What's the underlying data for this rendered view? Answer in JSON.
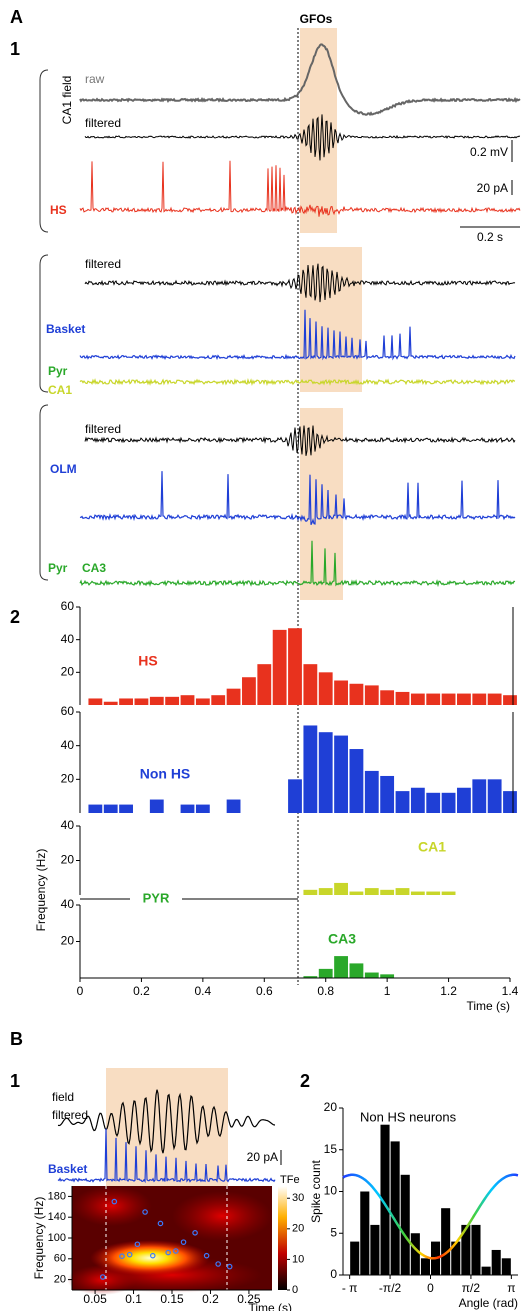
{
  "figure": {
    "panel_a": "A",
    "a1": "1",
    "a2": "2",
    "panel_b": "B",
    "b1": "1",
    "b2": "2"
  },
  "traces_a": {
    "gfo": "GFOs",
    "raw": "raw",
    "ca1_field": "CA1 field",
    "filtered_1": "filtered",
    "scale_mv": "0.2 mV",
    "scale_pa": "20 pA",
    "scale_s": "0.2 s",
    "hs": "HS",
    "filtered_2": "filtered",
    "basket": "Basket",
    "pyr_1": "Pyr",
    "ca1": "CA1",
    "filtered_3": "filtered",
    "olm": "OLM",
    "pyr_2": "Pyr",
    "ca3": "CA3"
  },
  "traces_b": {
    "field": "field",
    "filtered": "filtered",
    "basket": "Basket",
    "scale_pa": "20 pA"
  },
  "chart_data": [
    {
      "type": "bar",
      "label": "HS",
      "color": "#e8321e",
      "xlim": [
        0,
        1.4
      ],
      "ylim": [
        0,
        60
      ],
      "yticks": [
        20,
        40,
        60
      ],
      "x": [
        0.05,
        0.1,
        0.15,
        0.2,
        0.25,
        0.3,
        0.35,
        0.4,
        0.45,
        0.5,
        0.55,
        0.6,
        0.65,
        0.7,
        0.75,
        0.8,
        0.85,
        0.9,
        0.95,
        1.0,
        1.05,
        1.1,
        1.15,
        1.2,
        1.25,
        1.3,
        1.35,
        1.4
      ],
      "values": [
        4,
        2,
        4,
        4,
        5,
        5,
        6,
        4,
        6,
        10,
        17,
        25,
        46,
        47,
        25,
        20,
        15,
        13,
        12,
        9,
        8,
        7,
        7,
        7,
        7,
        7,
        7,
        6
      ]
    },
    {
      "type": "bar",
      "label": "Non HS",
      "color": "#1f3fd6",
      "xlim": [
        0,
        1.4
      ],
      "ylim": [
        0,
        60
      ],
      "yticks": [
        20,
        40,
        60
      ],
      "x": [
        0.05,
        0.1,
        0.15,
        0.2,
        0.25,
        0.3,
        0.35,
        0.4,
        0.45,
        0.5,
        0.55,
        0.6,
        0.65,
        0.7,
        0.75,
        0.8,
        0.85,
        0.9,
        0.95,
        1.0,
        1.05,
        1.1,
        1.15,
        1.2,
        1.25,
        1.3,
        1.35,
        1.4
      ],
      "values": [
        5,
        5,
        5,
        0,
        8,
        0,
        5,
        5,
        0,
        8,
        0,
        0,
        0,
        20,
        52,
        48,
        46,
        38,
        25,
        22,
        13,
        15,
        12,
        12,
        15,
        20,
        20,
        13
      ]
    },
    {
      "type": "bar",
      "label": "CA1",
      "group_label": "PYR",
      "color": "#c8d62a",
      "xlim": [
        0,
        1.4
      ],
      "ylim": [
        0,
        40
      ],
      "yticks": [
        20,
        40
      ],
      "x": [
        0.75,
        0.8,
        0.85,
        0.9,
        0.95,
        1.0,
        1.05,
        1.1,
        1.15,
        1.2
      ],
      "values": [
        3,
        4,
        7,
        2,
        4,
        3,
        4,
        2,
        2,
        2
      ]
    },
    {
      "type": "bar",
      "label": "CA3",
      "color": "#2aa82a",
      "xlim": [
        0,
        1.4
      ],
      "ylim": [
        0,
        40
      ],
      "yticks": [
        20,
        40
      ],
      "y_label": "Frequency (Hz)",
      "x_label": "Time (s)",
      "xticks": [
        0,
        0.2,
        0.4,
        0.6,
        0.8,
        1,
        1.2,
        1.4
      ],
      "x": [
        0.75,
        0.8,
        0.85,
        0.9,
        0.95,
        1.0
      ],
      "values": [
        1,
        5,
        12,
        8,
        3,
        2
      ]
    },
    {
      "type": "heatmap",
      "y_label": "Frequency (Hz)",
      "x_label": "Time (s)",
      "xlim": [
        0.02,
        0.28
      ],
      "xticks": [
        0.05,
        0.1,
        0.15,
        0.2,
        0.25
      ],
      "ylim": [
        0,
        200
      ],
      "yticks": [
        20,
        60,
        100,
        140,
        180
      ],
      "colorbar": {
        "label": "TFe",
        "lim": [
          0,
          34
        ],
        "ticks": [
          0,
          10,
          20,
          30
        ]
      },
      "points": {
        "color": "#3a7bff",
        "x": [
          0.06,
          0.075,
          0.085,
          0.095,
          0.105,
          0.115,
          0.125,
          0.135,
          0.145,
          0.155,
          0.165,
          0.18,
          0.195,
          0.21,
          0.225
        ],
        "y": [
          25,
          170,
          65,
          68,
          88,
          150,
          66,
          128,
          72,
          75,
          92,
          110,
          66,
          50,
          45
        ]
      }
    },
    {
      "type": "bar",
      "title": "Non HS neurons",
      "y_label": "Spike count",
      "x_label": "Angle (rad)",
      "color": "#000000",
      "xlim": [
        -3.4,
        3.4
      ],
      "xticks": [
        {
          "value": -3.1416,
          "label": "- π"
        },
        {
          "value": -1.5708,
          "label": "-π/2"
        },
        0,
        {
          "value": 1.5708,
          "label": "π/2"
        },
        {
          "value": 3.1416,
          "label": "π"
        }
      ],
      "ylim": [
        0,
        20
      ],
      "yticks": [
        0,
        5,
        10,
        15,
        20
      ],
      "x": [
        -2.945,
        -2.553,
        -2.16,
        -1.767,
        -1.374,
        -0.982,
        -0.589,
        -0.196,
        0.196,
        0.589,
        0.982,
        1.374,
        1.767,
        2.16,
        2.553,
        2.945
      ],
      "values": [
        4,
        10,
        6,
        18,
        16,
        12,
        5,
        2,
        4,
        8,
        4,
        6,
        6,
        1,
        3,
        2
      ]
    }
  ]
}
